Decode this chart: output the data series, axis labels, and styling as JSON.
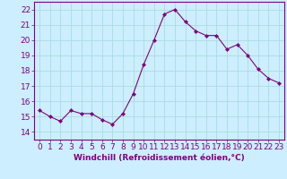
{
  "x": [
    0,
    1,
    2,
    3,
    4,
    5,
    6,
    7,
    8,
    9,
    10,
    11,
    12,
    13,
    14,
    15,
    16,
    17,
    18,
    19,
    20,
    21,
    22,
    23
  ],
  "y": [
    15.4,
    15.0,
    14.7,
    15.4,
    15.2,
    15.2,
    14.8,
    14.5,
    15.2,
    16.5,
    18.4,
    20.0,
    21.7,
    22.0,
    21.2,
    20.6,
    20.3,
    20.3,
    19.4,
    19.7,
    19.0,
    18.1,
    17.5,
    17.2
  ],
  "line_color": "#800080",
  "marker": "D",
  "marker_size": 2,
  "bg_color": "#cceeff",
  "grid_color": "#aadddd",
  "xlabel": "Windchill (Refroidissement éolien,°C)",
  "xlabel_fontsize": 6.5,
  "tick_fontsize": 6.5,
  "ylim": [
    13.5,
    22.5
  ],
  "xlim": [
    -0.5,
    23.5
  ],
  "yticks": [
    14,
    15,
    16,
    17,
    18,
    19,
    20,
    21,
    22
  ],
  "xticks": [
    0,
    1,
    2,
    3,
    4,
    5,
    6,
    7,
    8,
    9,
    10,
    11,
    12,
    13,
    14,
    15,
    16,
    17,
    18,
    19,
    20,
    21,
    22,
    23
  ]
}
